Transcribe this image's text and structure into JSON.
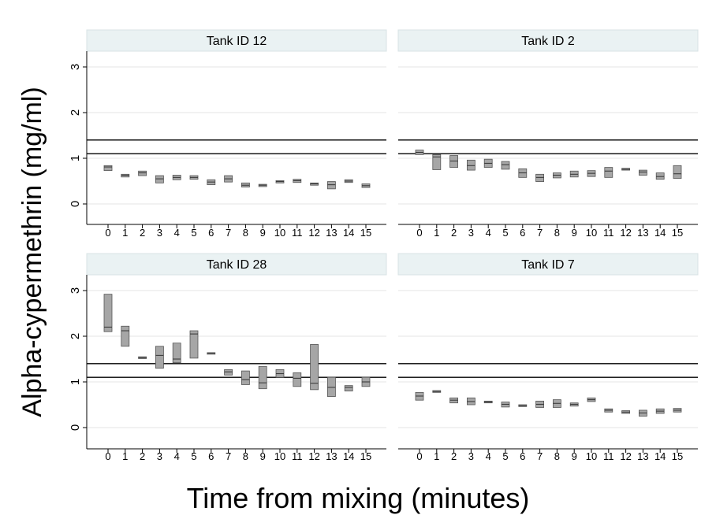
{
  "chart_data": {
    "type": "boxplot",
    "xlabel": "Time from mixing (minutes)",
    "ylabel": "Alpha-cypermethrin (mg/ml)",
    "categories": [
      "0",
      "1",
      "2",
      "3",
      "4",
      "5",
      "6",
      "7",
      "8",
      "9",
      "10",
      "11",
      "12",
      "13",
      "14",
      "15"
    ],
    "yticks": [
      "0",
      "1",
      "2",
      "3"
    ],
    "ylim": [
      -0.2,
      3.35
    ],
    "reference_lines": [
      1.1,
      1.4
    ],
    "grid": true,
    "box_color": "#a6a6a6",
    "panels": [
      {
        "title": "Tank ID 12",
        "boxes": [
          {
            "x": "0",
            "q1": 0.73,
            "median": 0.81,
            "q3": 0.84
          },
          {
            "x": "1",
            "q1": 0.59,
            "median": 0.63,
            "q3": 0.65
          },
          {
            "x": "2",
            "q1": 0.62,
            "median": 0.68,
            "q3": 0.72
          },
          {
            "x": "3",
            "q1": 0.46,
            "median": 0.55,
            "q3": 0.62
          },
          {
            "x": "4",
            "q1": 0.53,
            "median": 0.58,
            "q3": 0.63
          },
          {
            "x": "5",
            "q1": 0.54,
            "median": 0.58,
            "q3": 0.62
          },
          {
            "x": "6",
            "q1": 0.42,
            "median": 0.48,
            "q3": 0.53
          },
          {
            "x": "7",
            "q1": 0.48,
            "median": 0.55,
            "q3": 0.62
          },
          {
            "x": "8",
            "q1": 0.37,
            "median": 0.41,
            "q3": 0.46
          },
          {
            "x": "9",
            "q1": 0.38,
            "median": 0.41,
            "q3": 0.43
          },
          {
            "x": "10",
            "q1": 0.46,
            "median": 0.49,
            "q3": 0.51
          },
          {
            "x": "11",
            "q1": 0.47,
            "median": 0.51,
            "q3": 0.54
          },
          {
            "x": "12",
            "q1": 0.41,
            "median": 0.44,
            "q3": 0.46
          },
          {
            "x": "13",
            "q1": 0.33,
            "median": 0.42,
            "q3": 0.49
          },
          {
            "x": "14",
            "q1": 0.47,
            "median": 0.5,
            "q3": 0.53
          },
          {
            "x": "15",
            "q1": 0.36,
            "median": 0.4,
            "q3": 0.44
          }
        ]
      },
      {
        "title": "Tank ID 2",
        "boxes": [
          {
            "x": "0",
            "q1": 1.08,
            "median": 1.13,
            "q3": 1.18
          },
          {
            "x": "1",
            "q1": 0.75,
            "median": 1.03,
            "q3": 1.08
          },
          {
            "x": "2",
            "q1": 0.8,
            "median": 0.94,
            "q3": 1.06
          },
          {
            "x": "3",
            "q1": 0.74,
            "median": 0.84,
            "q3": 0.96
          },
          {
            "x": "4",
            "q1": 0.8,
            "median": 0.89,
            "q3": 0.98
          },
          {
            "x": "5",
            "q1": 0.76,
            "median": 0.86,
            "q3": 0.93
          },
          {
            "x": "6",
            "q1": 0.58,
            "median": 0.68,
            "q3": 0.77
          },
          {
            "x": "7",
            "q1": 0.49,
            "median": 0.58,
            "q3": 0.65
          },
          {
            "x": "8",
            "q1": 0.57,
            "median": 0.63,
            "q3": 0.68
          },
          {
            "x": "9",
            "q1": 0.59,
            "median": 0.65,
            "q3": 0.72
          },
          {
            "x": "10",
            "q1": 0.6,
            "median": 0.67,
            "q3": 0.73
          },
          {
            "x": "11",
            "q1": 0.58,
            "median": 0.72,
            "q3": 0.8
          },
          {
            "x": "12",
            "q1": 0.74,
            "median": 0.76,
            "q3": 0.78
          },
          {
            "x": "13",
            "q1": 0.63,
            "median": 0.7,
            "q3": 0.74
          },
          {
            "x": "14",
            "q1": 0.54,
            "median": 0.6,
            "q3": 0.68
          },
          {
            "x": "15",
            "q1": 0.56,
            "median": 0.66,
            "q3": 0.84
          }
        ]
      },
      {
        "title": "Tank ID 28",
        "boxes": [
          {
            "x": "0",
            "q1": 2.1,
            "median": 2.2,
            "q3": 2.92
          },
          {
            "x": "1",
            "q1": 1.78,
            "median": 2.12,
            "q3": 2.22
          },
          {
            "x": "2",
            "q1": 1.51,
            "median": 1.53,
            "q3": 1.55
          },
          {
            "x": "3",
            "q1": 1.3,
            "median": 1.58,
            "q3": 1.78
          },
          {
            "x": "4",
            "q1": 1.42,
            "median": 1.5,
            "q3": 1.85
          },
          {
            "x": "5",
            "q1": 1.52,
            "median": 2.05,
            "q3": 2.12
          },
          {
            "x": "6",
            "q1": 1.62,
            "median": 1.63,
            "q3": 1.64
          },
          {
            "x": "7",
            "q1": 1.15,
            "median": 1.22,
            "q3": 1.27
          },
          {
            "x": "8",
            "q1": 0.94,
            "median": 1.05,
            "q3": 1.24
          },
          {
            "x": "9",
            "q1": 0.85,
            "median": 0.98,
            "q3": 1.34
          },
          {
            "x": "10",
            "q1": 1.1,
            "median": 1.18,
            "q3": 1.27
          },
          {
            "x": "11",
            "q1": 0.9,
            "median": 1.08,
            "q3": 1.2
          },
          {
            "x": "12",
            "q1": 0.83,
            "median": 0.97,
            "q3": 1.82
          },
          {
            "x": "13",
            "q1": 0.68,
            "median": 0.88,
            "q3": 1.1
          },
          {
            "x": "14",
            "q1": 0.8,
            "median": 0.88,
            "q3": 0.92
          },
          {
            "x": "15",
            "q1": 0.9,
            "median": 1.0,
            "q3": 1.1
          }
        ]
      },
      {
        "title": "Tank ID 7",
        "boxes": [
          {
            "x": "0",
            "q1": 0.6,
            "median": 0.69,
            "q3": 0.77
          },
          {
            "x": "1",
            "q1": 0.77,
            "median": 0.79,
            "q3": 0.81
          },
          {
            "x": "2",
            "q1": 0.54,
            "median": 0.6,
            "q3": 0.65
          },
          {
            "x": "3",
            "q1": 0.5,
            "median": 0.57,
            "q3": 0.65
          },
          {
            "x": "4",
            "q1": 0.54,
            "median": 0.56,
            "q3": 0.58
          },
          {
            "x": "5",
            "q1": 0.45,
            "median": 0.51,
            "q3": 0.56
          },
          {
            "x": "6",
            "q1": 0.46,
            "median": 0.48,
            "q3": 0.5
          },
          {
            "x": "7",
            "q1": 0.44,
            "median": 0.51,
            "q3": 0.58
          },
          {
            "x": "8",
            "q1": 0.44,
            "median": 0.53,
            "q3": 0.61
          },
          {
            "x": "9",
            "q1": 0.47,
            "median": 0.51,
            "q3": 0.54
          },
          {
            "x": "10",
            "q1": 0.57,
            "median": 0.61,
            "q3": 0.65
          },
          {
            "x": "11",
            "q1": 0.34,
            "median": 0.38,
            "q3": 0.41
          },
          {
            "x": "12",
            "q1": 0.31,
            "median": 0.34,
            "q3": 0.37
          },
          {
            "x": "13",
            "q1": 0.25,
            "median": 0.32,
            "q3": 0.38
          },
          {
            "x": "14",
            "q1": 0.31,
            "median": 0.36,
            "q3": 0.41
          },
          {
            "x": "15",
            "q1": 0.34,
            "median": 0.38,
            "q3": 0.42
          }
        ]
      }
    ]
  }
}
